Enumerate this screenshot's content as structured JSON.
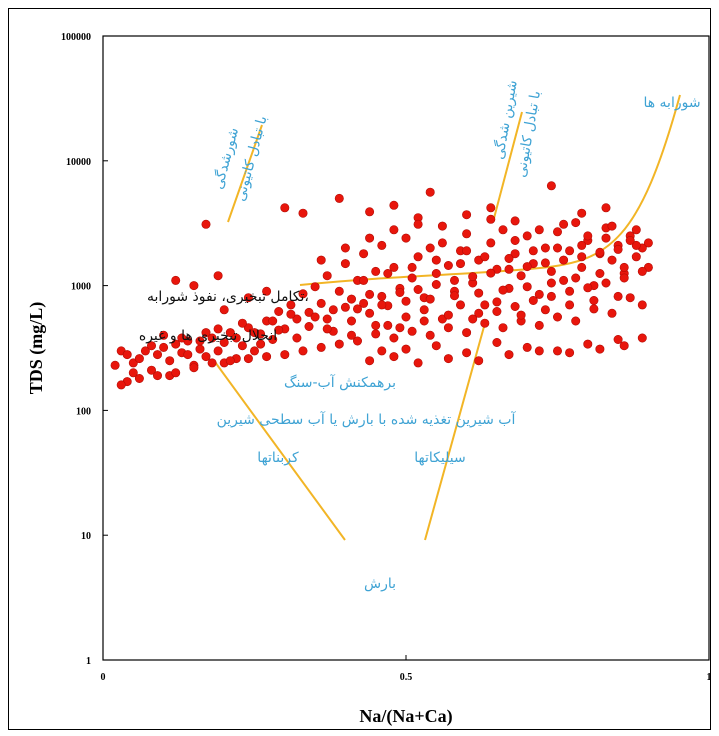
{
  "chart_data": {
    "type": "scatter",
    "xlabel": "Na/(Na+Ca)",
    "ylabel": "TDS (mg/L)",
    "xlim": [
      0,
      1
    ],
    "ylim": [
      1,
      100000
    ],
    "yscale": "log",
    "x_ticks": [
      "0",
      "0.5",
      "1"
    ],
    "y_ticks": [
      "1",
      "10",
      "100",
      "1000",
      "10000",
      "100000"
    ],
    "grid": false,
    "marker_color": "#e8160c",
    "line_color": "#f2b526",
    "text_color": "#3fa3d4",
    "annotations": {
      "evaporation_crystallization": "شورابه ها",
      "evaporation_exchange": "شیرین شدگی",
      "evaporation_exchange_2": "با تبادل کاتیونی",
      "salinization_left": "شورشدگی",
      "salinization_left_2": "با تبادل کاتیونی",
      "mixing_a": "تکامل تبخیری، نفوذ شورابه،",
      "mixing_b": "انحلال تبخیری ها و غیره",
      "rock_interaction": "برهمکنش آب-سنگ",
      "fresh_recharge": "آب شیرین تغذیه شده با بارش یا آب سطحی شیرین",
      "carbonates": "کربناتها",
      "silicates": "سیلیکاتها",
      "precipitation": "بارش"
    },
    "points": [
      [
        0.04,
        170
      ],
      [
        0.05,
        240
      ],
      [
        0.06,
        260
      ],
      [
        0.07,
        300
      ],
      [
        0.08,
        210
      ],
      [
        0.09,
        280
      ],
      [
        0.1,
        320
      ],
      [
        0.11,
        250
      ],
      [
        0.12,
        340
      ],
      [
        0.13,
        290
      ],
      [
        0.14,
        360
      ],
      [
        0.15,
        230
      ],
      [
        0.16,
        310
      ],
      [
        0.17,
        270
      ],
      [
        0.18,
        380
      ],
      [
        0.19,
        300
      ],
      [
        0.2,
        350
      ],
      [
        0.21,
        420
      ],
      [
        0.22,
        260
      ],
      [
        0.23,
        330
      ],
      [
        0.24,
        460
      ],
      [
        0.25,
        300
      ],
      [
        0.26,
        410
      ],
      [
        0.27,
        520
      ],
      [
        0.28,
        370
      ],
      [
        0.29,
        620
      ],
      [
        0.3,
        450
      ],
      [
        0.31,
        700
      ],
      [
        0.32,
        540
      ],
      [
        0.33,
        860
      ],
      [
        0.34,
        610
      ],
      [
        0.35,
        980
      ],
      [
        0.36,
        720
      ],
      [
        0.37,
        1200
      ],
      [
        0.38,
        640
      ],
      [
        0.39,
        900
      ],
      [
        0.4,
        1500
      ],
      [
        0.41,
        780
      ],
      [
        0.42,
        1100
      ],
      [
        0.43,
        1800
      ],
      [
        0.44,
        850
      ],
      [
        0.45,
        1300
      ],
      [
        0.46,
        2100
      ],
      [
        0.47,
        690
      ],
      [
        0.48,
        1400
      ],
      [
        0.49,
        950
      ],
      [
        0.5,
        2400
      ],
      [
        0.51,
        1150
      ],
      [
        0.52,
        1700
      ],
      [
        0.53,
        800
      ],
      [
        0.54,
        2000
      ],
      [
        0.55,
        1250
      ],
      [
        0.56,
        3000
      ],
      [
        0.57,
        1450
      ],
      [
        0.58,
        900
      ],
      [
        0.59,
        1900
      ],
      [
        0.6,
        2600
      ],
      [
        0.61,
        1050
      ],
      [
        0.62,
        1600
      ],
      [
        0.63,
        700
      ],
      [
        0.64,
        2200
      ],
      [
        0.65,
        1350
      ],
      [
        0.66,
        2800
      ],
      [
        0.67,
        950
      ],
      [
        0.68,
        1800
      ],
      [
        0.69,
        1200
      ],
      [
        0.7,
        2500
      ],
      [
        0.71,
        1500
      ],
      [
        0.72,
        850
      ],
      [
        0.73,
        2000
      ],
      [
        0.74,
        1300
      ],
      [
        0.75,
        2700
      ],
      [
        0.76,
        1100
      ],
      [
        0.77,
        1900
      ],
      [
        0.78,
        3200
      ],
      [
        0.79,
        1400
      ],
      [
        0.8,
        2300
      ],
      [
        0.81,
        1000
      ],
      [
        0.82,
        1800
      ],
      [
        0.83,
        2900
      ],
      [
        0.84,
        1600
      ],
      [
        0.85,
        2100
      ],
      [
        0.86,
        1250
      ],
      [
        0.87,
        2500
      ],
      [
        0.88,
        1700
      ],
      [
        0.89,
        2000
      ],
      [
        0.9,
        1400
      ],
      [
        0.9,
        2200
      ],
      [
        0.05,
        200
      ],
      [
        0.08,
        330
      ],
      [
        0.11,
        190
      ],
      [
        0.14,
        280
      ],
      [
        0.17,
        420
      ],
      [
        0.2,
        240
      ],
      [
        0.23,
        500
      ],
      [
        0.26,
        340
      ],
      [
        0.29,
        440
      ],
      [
        0.32,
        380
      ],
      [
        0.35,
        560
      ],
      [
        0.38,
        430
      ],
      [
        0.41,
        520
      ],
      [
        0.44,
        600
      ],
      [
        0.47,
        480
      ],
      [
        0.5,
        560
      ],
      [
        0.53,
        640
      ],
      [
        0.56,
        540
      ],
      [
        0.59,
        700
      ],
      [
        0.62,
        600
      ],
      [
        0.65,
        740
      ],
      [
        0.68,
        680
      ],
      [
        0.71,
        760
      ],
      [
        0.74,
        820
      ],
      [
        0.77,
        900
      ],
      [
        0.8,
        960
      ],
      [
        0.83,
        1050
      ],
      [
        0.86,
        1150
      ],
      [
        0.89,
        1300
      ],
      [
        0.3,
        4200
      ],
      [
        0.33,
        3800
      ],
      [
        0.39,
        5000
      ],
      [
        0.44,
        3900
      ],
      [
        0.48,
        4400
      ],
      [
        0.52,
        3500
      ],
      [
        0.54,
        5600
      ],
      [
        0.6,
        3700
      ],
      [
        0.64,
        4200
      ],
      [
        0.68,
        3300
      ],
      [
        0.74,
        6300
      ],
      [
        0.79,
        3800
      ],
      [
        0.83,
        4200
      ],
      [
        0.17,
        3100
      ],
      [
        0.12,
        1100
      ],
      [
        0.15,
        1000
      ],
      [
        0.19,
        1200
      ],
      [
        0.2,
        640
      ],
      [
        0.24,
        800
      ],
      [
        0.27,
        900
      ],
      [
        0.46,
        300
      ],
      [
        0.5,
        310
      ],
      [
        0.55,
        330
      ],
      [
        0.6,
        290
      ],
      [
        0.65,
        350
      ],
      [
        0.7,
        320
      ],
      [
        0.75,
        300
      ],
      [
        0.8,
        340
      ],
      [
        0.85,
        370
      ],
      [
        0.89,
        380
      ],
      [
        0.44,
        250
      ],
      [
        0.48,
        270
      ],
      [
        0.52,
        240
      ],
      [
        0.57,
        260
      ],
      [
        0.62,
        250
      ],
      [
        0.67,
        280
      ],
      [
        0.72,
        300
      ],
      [
        0.77,
        290
      ],
      [
        0.82,
        310
      ],
      [
        0.86,
        330
      ],
      [
        0.89,
        700
      ],
      [
        0.87,
        800
      ],
      [
        0.84,
        600
      ],
      [
        0.81,
        650
      ],
      [
        0.78,
        520
      ],
      [
        0.75,
        560
      ],
      [
        0.72,
        480
      ],
      [
        0.69,
        520
      ],
      [
        0.66,
        460
      ],
      [
        0.63,
        500
      ],
      [
        0.6,
        420
      ],
      [
        0.57,
        460
      ],
      [
        0.54,
        400
      ],
      [
        0.51,
        430
      ],
      [
        0.48,
        380
      ],
      [
        0.45,
        410
      ],
      [
        0.42,
        360
      ],
      [
        0.39,
        340
      ],
      [
        0.36,
        320
      ],
      [
        0.33,
        300
      ],
      [
        0.3,
        280
      ],
      [
        0.27,
        270
      ],
      [
        0.24,
        260
      ],
      [
        0.21,
        250
      ],
      [
        0.18,
        240
      ],
      [
        0.15,
        220
      ],
      [
        0.12,
        200
      ],
      [
        0.09,
        190
      ],
      [
        0.06,
        180
      ],
      [
        0.03,
        160
      ],
      [
        0.02,
        230
      ],
      [
        0.03,
        300
      ],
      [
        0.04,
        280
      ],
      [
        0.1,
        400
      ],
      [
        0.13,
        380
      ],
      [
        0.16,
        360
      ],
      [
        0.19,
        450
      ],
      [
        0.22,
        380
      ],
      [
        0.25,
        420
      ],
      [
        0.28,
        520
      ],
      [
        0.31,
        590
      ],
      [
        0.34,
        470
      ],
      [
        0.37,
        540
      ],
      [
        0.4,
        670
      ],
      [
        0.43,
        720
      ],
      [
        0.46,
        820
      ],
      [
        0.49,
        880
      ],
      [
        0.52,
        930
      ],
      [
        0.55,
        1020
      ],
      [
        0.58,
        1100
      ],
      [
        0.61,
        1180
      ],
      [
        0.64,
        1260
      ],
      [
        0.67,
        1350
      ],
      [
        0.7,
        1420
      ],
      [
        0.73,
        1520
      ],
      [
        0.76,
        1600
      ],
      [
        0.79,
        1700
      ],
      [
        0.82,
        1850
      ],
      [
        0.85,
        1950
      ],
      [
        0.88,
        2100
      ],
      [
        0.36,
        1600
      ],
      [
        0.4,
        2000
      ],
      [
        0.44,
        2400
      ],
      [
        0.48,
        2800
      ],
      [
        0.52,
        3100
      ],
      [
        0.56,
        2200
      ],
      [
        0.6,
        1900
      ],
      [
        0.64,
        3400
      ],
      [
        0.68,
        2300
      ],
      [
        0.72,
        2800
      ],
      [
        0.76,
        3100
      ],
      [
        0.8,
        2500
      ],
      [
        0.84,
        3000
      ],
      [
        0.88,
        2800
      ],
      [
        0.37,
        450
      ],
      [
        0.41,
        400
      ],
      [
        0.45,
        480
      ],
      [
        0.49,
        460
      ],
      [
        0.53,
        520
      ],
      [
        0.57,
        580
      ],
      [
        0.61,
        540
      ],
      [
        0.65,
        620
      ],
      [
        0.69,
        580
      ],
      [
        0.73,
        640
      ],
      [
        0.77,
        700
      ],
      [
        0.81,
        760
      ],
      [
        0.85,
        820
      ],
      [
        0.43,
        1100
      ],
      [
        0.47,
        1250
      ],
      [
        0.51,
        1400
      ],
      [
        0.55,
        1600
      ],
      [
        0.59,
        1500
      ],
      [
        0.63,
        1700
      ],
      [
        0.67,
        1650
      ],
      [
        0.71,
        1900
      ],
      [
        0.75,
        2000
      ],
      [
        0.79,
        2100
      ],
      [
        0.83,
        2400
      ],
      [
        0.87,
        2300
      ],
      [
        0.42,
        650
      ],
      [
        0.46,
        700
      ],
      [
        0.5,
        750
      ],
      [
        0.54,
        780
      ],
      [
        0.58,
        830
      ],
      [
        0.62,
        870
      ],
      [
        0.66,
        920
      ],
      [
        0.7,
        980
      ],
      [
        0.74,
        1050
      ],
      [
        0.78,
        1150
      ],
      [
        0.82,
        1250
      ],
      [
        0.86,
        1400
      ]
    ]
  }
}
